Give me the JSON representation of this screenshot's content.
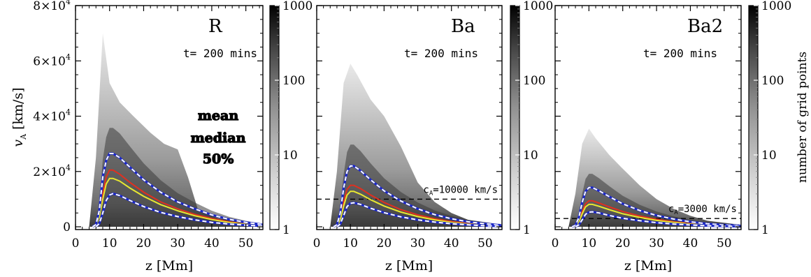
{
  "chart_data": [
    {
      "type": "heatmap",
      "panel_label": "R",
      "time_label": "t= 200 mins",
      "xlabel": "z [Mm]",
      "ylabel": "v_A [km/s]",
      "xlim": [
        0,
        55
      ],
      "ylim": [
        -1000,
        80000
      ],
      "xticks": [
        0,
        10,
        20,
        30,
        40,
        50
      ],
      "yticks": [
        {
          "value": 0,
          "mantissa": "0",
          "exponent": ""
        },
        {
          "value": 20000,
          "mantissa": "2×10",
          "exponent": "4"
        },
        {
          "value": 40000,
          "mantissa": "4×10",
          "exponent": "4"
        },
        {
          "value": 60000,
          "mantissa": "6×10",
          "exponent": "4"
        },
        {
          "value": 80000,
          "mantissa": "8×10",
          "exponent": "4"
        }
      ],
      "legend": [
        {
          "label": "mean",
          "color": "#d62a1e",
          "outline": "#000000"
        },
        {
          "label": "median",
          "color": "#e8e830",
          "outline": "#000000"
        },
        {
          "label": "50%",
          "color": "#2026a8",
          "outline": "#000000"
        }
      ],
      "peak_envelope": [
        [
          4,
          0
        ],
        [
          6,
          25000
        ],
        [
          8,
          70000
        ],
        [
          10,
          52000
        ],
        [
          13,
          45000
        ],
        [
          17,
          40000
        ],
        [
          22,
          34000
        ],
        [
          26,
          30000
        ],
        [
          30,
          28000
        ],
        [
          33,
          18000
        ],
        [
          36,
          6000
        ],
        [
          42,
          3000
        ],
        [
          55,
          1000
        ]
      ],
      "series": [
        {
          "name": "mean",
          "color": "#e03020",
          "style": "solid",
          "points": [
            [
              5,
              0
            ],
            [
              6,
              500
            ],
            [
              7,
              4000
            ],
            [
              8,
              12000
            ],
            [
              9,
              18000
            ],
            [
              10,
              20500
            ],
            [
              11,
              20500
            ],
            [
              13,
              19000
            ],
            [
              16,
              16000
            ],
            [
              20,
              12500
            ],
            [
              25,
              9000
            ],
            [
              30,
              6500
            ],
            [
              35,
              4500
            ],
            [
              40,
              3000
            ],
            [
              45,
              1800
            ],
            [
              50,
              1000
            ],
            [
              55,
              500
            ]
          ]
        },
        {
          "name": "median",
          "color": "#e8e830",
          "style": "solid",
          "points": [
            [
              5,
              0
            ],
            [
              6,
              400
            ],
            [
              7,
              3500
            ],
            [
              8,
              10000
            ],
            [
              9,
              15500
            ],
            [
              10,
              17500
            ],
            [
              11,
              17500
            ],
            [
              13,
              16500
            ],
            [
              16,
              14000
            ],
            [
              20,
              11000
            ],
            [
              25,
              8000
            ],
            [
              30,
              5800
            ],
            [
              35,
              4000
            ],
            [
              40,
              2600
            ],
            [
              45,
              1600
            ],
            [
              50,
              900
            ],
            [
              55,
              400
            ]
          ]
        },
        {
          "name": "50% upper",
          "color": "#ffffff",
          "style": "dashed-blue",
          "points": [
            [
              5,
              0
            ],
            [
              6,
              800
            ],
            [
              7,
              6000
            ],
            [
              8,
              18000
            ],
            [
              9,
              24000
            ],
            [
              10,
              26500
            ],
            [
              11,
              26500
            ],
            [
              13,
              25000
            ],
            [
              16,
              21500
            ],
            [
              20,
              17000
            ],
            [
              25,
              12500
            ],
            [
              30,
              9000
            ],
            [
              35,
              6500
            ],
            [
              40,
              4300
            ],
            [
              45,
              2700
            ],
            [
              50,
              1600
            ],
            [
              55,
              800
            ]
          ]
        },
        {
          "name": "50% lower",
          "color": "#ffffff",
          "style": "dashed-blue",
          "points": [
            [
              6,
              0
            ],
            [
              7,
              1200
            ],
            [
              8,
              5000
            ],
            [
              9,
              9500
            ],
            [
              10,
              11500
            ],
            [
              11,
              12000
            ],
            [
              13,
              11300
            ],
            [
              16,
              9500
            ],
            [
              20,
              7300
            ],
            [
              25,
              5200
            ],
            [
              30,
              3700
            ],
            [
              35,
              2500
            ],
            [
              40,
              1600
            ],
            [
              45,
              1000
            ],
            [
              50,
              600
            ],
            [
              55,
              250
            ]
          ]
        }
      ],
      "reference_line": null
    },
    {
      "type": "heatmap",
      "panel_label": "Ba",
      "time_label": "t= 200 mins",
      "xlabel": "z [Mm]",
      "ylabel": "",
      "xlim": [
        0,
        55
      ],
      "ylim": [
        -1000,
        80000
      ],
      "xticks": [
        0,
        10,
        20,
        30,
        40,
        50
      ],
      "peak_envelope": [
        [
          4,
          0
        ],
        [
          6,
          20000
        ],
        [
          8,
          52000
        ],
        [
          10,
          59000
        ],
        [
          12,
          55000
        ],
        [
          16,
          46000
        ],
        [
          20,
          40000
        ],
        [
          25,
          29000
        ],
        [
          30,
          16000
        ],
        [
          35,
          9000
        ],
        [
          40,
          5000
        ],
        [
          45,
          2500
        ],
        [
          55,
          800
        ]
      ],
      "series": [
        {
          "name": "mean",
          "color": "#e03020",
          "style": "solid",
          "points": [
            [
              5,
              0
            ],
            [
              6,
              400
            ],
            [
              7,
              3000
            ],
            [
              8,
              9000
            ],
            [
              9,
              13500
            ],
            [
              10,
              15000
            ],
            [
              11,
              15000
            ],
            [
              13,
              13800
            ],
            [
              16,
              11500
            ],
            [
              20,
              8800
            ],
            [
              25,
              6200
            ],
            [
              30,
              4300
            ],
            [
              35,
              2900
            ],
            [
              40,
              1900
            ],
            [
              45,
              1200
            ],
            [
              50,
              700
            ],
            [
              55,
              350
            ]
          ]
        },
        {
          "name": "median",
          "color": "#e8e830",
          "style": "solid",
          "points": [
            [
              5,
              0
            ],
            [
              6,
              300
            ],
            [
              7,
              2500
            ],
            [
              8,
              7500
            ],
            [
              9,
              11500
            ],
            [
              10,
              12800
            ],
            [
              11,
              12800
            ],
            [
              13,
              11800
            ],
            [
              16,
              9800
            ],
            [
              20,
              7500
            ],
            [
              25,
              5300
            ],
            [
              30,
              3700
            ],
            [
              35,
              2500
            ],
            [
              40,
              1600
            ],
            [
              45,
              1000
            ],
            [
              50,
              600
            ],
            [
              55,
              300
            ]
          ]
        },
        {
          "name": "50% upper",
          "color": "#ffffff",
          "style": "dashed-blue",
          "points": [
            [
              5,
              0
            ],
            [
              6,
              700
            ],
            [
              7,
              5000
            ],
            [
              8,
              14000
            ],
            [
              9,
              20000
            ],
            [
              10,
              22000
            ],
            [
              11,
              22000
            ],
            [
              13,
              20300
            ],
            [
              16,
              17000
            ],
            [
              20,
              13000
            ],
            [
              25,
              9300
            ],
            [
              30,
              6500
            ],
            [
              35,
              4400
            ],
            [
              40,
              2900
            ],
            [
              45,
              1800
            ],
            [
              50,
              1100
            ],
            [
              55,
              550
            ]
          ]
        },
        {
          "name": "50% lower",
          "color": "#ffffff",
          "style": "dashed-blue",
          "points": [
            [
              6,
              0
            ],
            [
              7,
              1000
            ],
            [
              8,
              4000
            ],
            [
              9,
              7300
            ],
            [
              10,
              8500
            ],
            [
              11,
              8700
            ],
            [
              13,
              8100
            ],
            [
              16,
              6700
            ],
            [
              20,
              5100
            ],
            [
              25,
              3600
            ],
            [
              30,
              2500
            ],
            [
              35,
              1700
            ],
            [
              40,
              1100
            ],
            [
              45,
              700
            ],
            [
              50,
              400
            ],
            [
              55,
              200
            ]
          ]
        }
      ],
      "reference_line": {
        "value": 10000,
        "label_main": "c",
        "label_sub": "A",
        "label_rest": "=10000 km/s"
      }
    },
    {
      "type": "heatmap",
      "panel_label": "Ba2",
      "time_label": "t= 200 mins",
      "xlabel": "z [Mm]",
      "ylabel": "",
      "xlim": [
        0,
        55
      ],
      "ylim": [
        -1000,
        80000
      ],
      "xticks": [
        0,
        10,
        20,
        30,
        40,
        50
      ],
      "peak_envelope": [
        [
          4,
          0
        ],
        [
          6,
          12000
        ],
        [
          8,
          30000
        ],
        [
          10,
          35500
        ],
        [
          12,
          32000
        ],
        [
          16,
          26000
        ],
        [
          20,
          21000
        ],
        [
          25,
          15000
        ],
        [
          30,
          10000
        ],
        [
          35,
          6500
        ],
        [
          40,
          4000
        ],
        [
          45,
          2200
        ],
        [
          55,
          700
        ]
      ],
      "series": [
        {
          "name": "mean",
          "color": "#e03020",
          "style": "solid",
          "points": [
            [
              5,
              0
            ],
            [
              6,
              300
            ],
            [
              7,
              2000
            ],
            [
              8,
              5500
            ],
            [
              9,
              8300
            ],
            [
              10,
              9400
            ],
            [
              11,
              9400
            ],
            [
              13,
              8600
            ],
            [
              16,
              7200
            ],
            [
              20,
              5500
            ],
            [
              25,
              3900
            ],
            [
              30,
              2700
            ],
            [
              35,
              1800
            ],
            [
              40,
              1200
            ],
            [
              45,
              750
            ],
            [
              50,
              450
            ],
            [
              55,
              250
            ]
          ]
        },
        {
          "name": "median",
          "color": "#e8e830",
          "style": "solid",
          "points": [
            [
              5,
              0
            ],
            [
              6,
              250
            ],
            [
              7,
              1700
            ],
            [
              8,
              4700
            ],
            [
              9,
              7200
            ],
            [
              10,
              8100
            ],
            [
              11,
              8100
            ],
            [
              13,
              7400
            ],
            [
              16,
              6200
            ],
            [
              20,
              4700
            ],
            [
              25,
              3400
            ],
            [
              30,
              2300
            ],
            [
              35,
              1600
            ],
            [
              40,
              1000
            ],
            [
              45,
              650
            ],
            [
              50,
              400
            ],
            [
              55,
              200
            ]
          ]
        },
        {
          "name": "50% upper",
          "color": "#ffffff",
          "style": "dashed-blue",
          "points": [
            [
              5,
              0
            ],
            [
              6,
              500
            ],
            [
              7,
              3300
            ],
            [
              8,
              8800
            ],
            [
              9,
              12800
            ],
            [
              10,
              14200
            ],
            [
              11,
              14200
            ],
            [
              13,
              13000
            ],
            [
              16,
              10900
            ],
            [
              20,
              8300
            ],
            [
              25,
              5900
            ],
            [
              30,
              4100
            ],
            [
              35,
              2800
            ],
            [
              40,
              1800
            ],
            [
              45,
              1100
            ],
            [
              50,
              700
            ],
            [
              55,
              350
            ]
          ]
        },
        {
          "name": "50% lower",
          "color": "#ffffff",
          "style": "dashed-blue",
          "points": [
            [
              6,
              0
            ],
            [
              7,
              700
            ],
            [
              8,
              2500
            ],
            [
              9,
              4500
            ],
            [
              10,
              5300
            ],
            [
              11,
              5400
            ],
            [
              13,
              5000
            ],
            [
              16,
              4100
            ],
            [
              20,
              3100
            ],
            [
              25,
              2200
            ],
            [
              30,
              1500
            ],
            [
              35,
              1000
            ],
            [
              40,
              650
            ],
            [
              45,
              400
            ],
            [
              50,
              250
            ],
            [
              55,
              120
            ]
          ]
        }
      ],
      "reference_line": {
        "value": 3000,
        "label_main": "c",
        "label_sub": "A",
        "label_rest": "=3000 km/s"
      }
    }
  ],
  "colorbars": [
    {
      "scale": "log",
      "range": [
        1,
        1000
      ],
      "ticks": [
        "1",
        "10",
        "100",
        "1000"
      ],
      "label": ""
    },
    {
      "scale": "log",
      "range": [
        1,
        1000
      ],
      "ticks": [
        "1",
        "10",
        "100",
        "1000"
      ],
      "label": ""
    },
    {
      "scale": "log",
      "range": [
        1,
        1000
      ],
      "ticks": [
        "1",
        "10",
        "100",
        "1000"
      ],
      "label": "number of grid points"
    }
  ]
}
